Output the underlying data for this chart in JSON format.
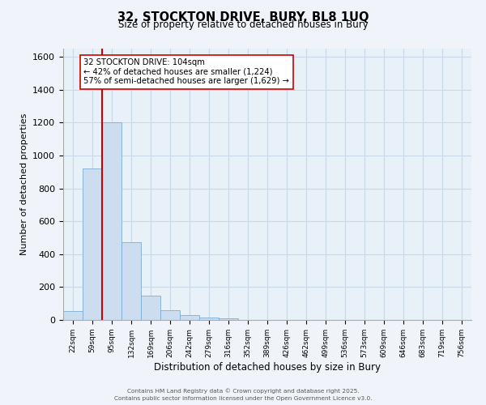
{
  "title_line1": "32, STOCKTON DRIVE, BURY, BL8 1UQ",
  "title_line2": "Size of property relative to detached houses in Bury",
  "bar_labels": [
    "22sqm",
    "59sqm",
    "95sqm",
    "132sqm",
    "169sqm",
    "206sqm",
    "242sqm",
    "279sqm",
    "316sqm",
    "352sqm",
    "389sqm",
    "426sqm",
    "462sqm",
    "499sqm",
    "536sqm",
    "573sqm",
    "609sqm",
    "646sqm",
    "683sqm",
    "719sqm",
    "756sqm"
  ],
  "bar_values": [
    55,
    920,
    1200,
    475,
    150,
    60,
    30,
    15,
    10,
    0,
    0,
    0,
    0,
    0,
    0,
    0,
    0,
    0,
    0,
    0,
    0
  ],
  "bar_color": "#ccddf0",
  "bar_edge_color": "#7bafd4",
  "vline_color": "#cc0000",
  "vline_bar_index": 2,
  "ylim": [
    0,
    1650
  ],
  "yticks": [
    0,
    200,
    400,
    600,
    800,
    1000,
    1200,
    1400,
    1600
  ],
  "ylabel": "Number of detached properties",
  "xlabel": "Distribution of detached houses by size in Bury",
  "ann_line1": "32 STOCKTON DRIVE: 104sqm",
  "ann_line2": "← 42% of detached houses are smaller (1,224)",
  "ann_line3": "57% of semi-detached houses are larger (1,629) →",
  "footer_line1": "Contains HM Land Registry data © Crown copyright and database right 2025.",
  "footer_line2": "Contains public sector information licensed under the Open Government Licence v3.0.",
  "background_color": "#f0f4fa",
  "plot_background": "#e8f0f8",
  "grid_color": "#c8d8e8"
}
